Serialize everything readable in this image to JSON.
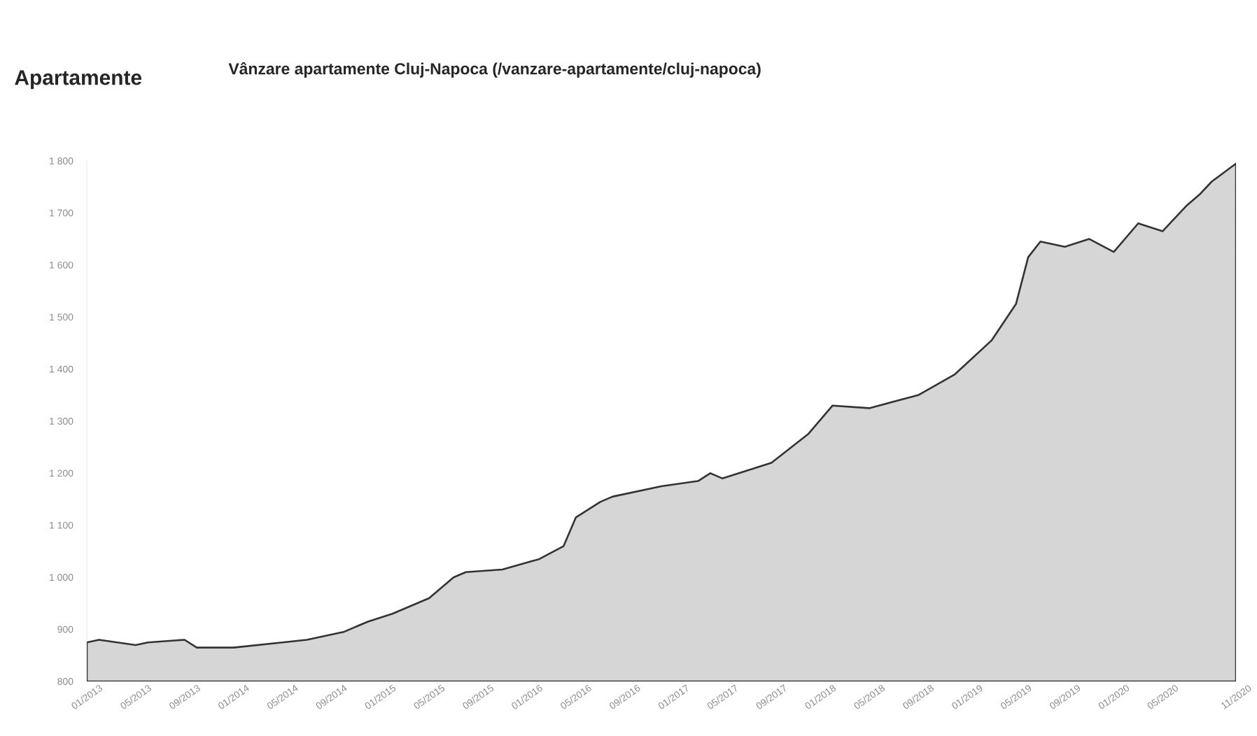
{
  "chart_data": {
    "type": "area",
    "title": "Apartamente",
    "subtitle": "Vânzare apartamente Cluj-Napoca (/vanzare-apartamente/cluj-napoca)",
    "x": [
      "2013-01",
      "2013-02",
      "2013-05",
      "2013-06",
      "2013-09",
      "2013-10",
      "2014-01",
      "2014-05",
      "2014-07",
      "2014-10",
      "2014-12",
      "2015-02",
      "2015-05",
      "2015-07",
      "2015-08",
      "2015-11",
      "2016-02",
      "2016-04",
      "2016-05",
      "2016-07",
      "2016-08",
      "2016-12",
      "2017-03",
      "2017-04",
      "2017-05",
      "2017-09",
      "2017-12",
      "2018-02",
      "2018-05",
      "2018-09",
      "2018-12",
      "2019-03",
      "2019-05",
      "2019-06",
      "2019-07",
      "2019-09",
      "2019-11",
      "2020-01",
      "2020-03",
      "2020-05",
      "2020-07",
      "2020-08",
      "2020-09",
      "2020-11"
    ],
    "values": [
      875,
      880,
      870,
      875,
      880,
      865,
      865,
      875,
      880,
      895,
      915,
      930,
      960,
      1000,
      1010,
      1015,
      1035,
      1060,
      1115,
      1145,
      1155,
      1175,
      1185,
      1200,
      1190,
      1220,
      1275,
      1330,
      1325,
      1350,
      1390,
      1455,
      1525,
      1615,
      1645,
      1635,
      1650,
      1625,
      1680,
      1665,
      1715,
      1735,
      1760,
      1795
    ],
    "color": "#d6d6d6",
    "marker": "none",
    "xlim": [
      "2013-01",
      "2020-11"
    ],
    "xticks": [
      {
        "value": "2013-01",
        "label": "01/2013"
      },
      {
        "value": "2013-05",
        "label": "05/2013"
      },
      {
        "value": "2013-09",
        "label": "09/2013"
      },
      {
        "value": "2014-01",
        "label": "01/2014"
      },
      {
        "value": "2014-05",
        "label": "05/2014"
      },
      {
        "value": "2014-09",
        "label": "09/2014"
      },
      {
        "value": "2015-01",
        "label": "01/2015"
      },
      {
        "value": "2015-05",
        "label": "05/2015"
      },
      {
        "value": "2015-09",
        "label": "09/2015"
      },
      {
        "value": "2016-01",
        "label": "01/2016"
      },
      {
        "value": "2016-05",
        "label": "05/2016"
      },
      {
        "value": "2016-09",
        "label": "09/2016"
      },
      {
        "value": "2017-01",
        "label": "01/2017"
      },
      {
        "value": "2017-05",
        "label": "05/2017"
      },
      {
        "value": "2017-09",
        "label": "09/2017"
      },
      {
        "value": "2018-01",
        "label": "01/2018"
      },
      {
        "value": "2018-05",
        "label": "05/2018"
      },
      {
        "value": "2018-09",
        "label": "09/2018"
      },
      {
        "value": "2019-01",
        "label": "01/2019"
      },
      {
        "value": "2019-05",
        "label": "05/2019"
      },
      {
        "value": "2019-09",
        "label": "09/2019"
      },
      {
        "value": "2020-01",
        "label": "01/2020"
      },
      {
        "value": "2020-05",
        "label": "05/2020"
      },
      {
        "value": "2020-11",
        "label": "11/2020"
      }
    ],
    "ylim": [
      800,
      1800
    ],
    "yticks": [
      800,
      900,
      {
        "value": 1000,
        "label": "1 000"
      },
      {
        "value": 1100,
        "label": "1 100"
      },
      {
        "value": 1200,
        "label": "1 200"
      },
      {
        "value": 1300,
        "label": "1 300"
      },
      {
        "value": 1400,
        "label": "1 400"
      },
      {
        "value": 1500,
        "label": "1 500"
      },
      {
        "value": 1600,
        "label": "1 600"
      },
      {
        "value": 1700,
        "label": "1 700"
      },
      {
        "value": 1800,
        "label": "1 800"
      }
    ]
  }
}
